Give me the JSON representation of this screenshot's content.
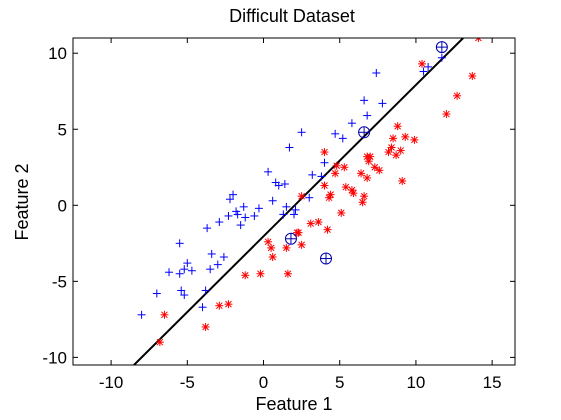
{
  "chart_data": {
    "type": "scatter",
    "title": "Difficult Dataset",
    "xlabel": "Feature 1",
    "ylabel": "Feature 2",
    "xlim": [
      -12.5,
      16.5
    ],
    "ylim": [
      -10.5,
      11
    ],
    "xticks": [
      -10,
      -5,
      0,
      5,
      10,
      15
    ],
    "yticks": [
      -10,
      -5,
      0,
      5,
      10
    ],
    "grid": false,
    "colors": {
      "class1": "#0000ff",
      "class2": "#ff0000",
      "boundary": "#000000",
      "support_vectors": "#0000aa"
    },
    "series": [
      {
        "marker": "plus",
        "color": "#0000ff",
        "points": [
          [
            -8,
            -7.2
          ],
          [
            -7,
            -5.8
          ],
          [
            -6.2,
            -4.4
          ],
          [
            -5.5,
            -2.5
          ],
          [
            -5.5,
            -4.5
          ],
          [
            -5.4,
            -5.6
          ],
          [
            -5.2,
            -5.9
          ],
          [
            -5.2,
            -4.2
          ],
          [
            -5,
            -3.8
          ],
          [
            -4.7,
            -4.3
          ],
          [
            -4,
            -6.7
          ],
          [
            -3.8,
            -5.6
          ],
          [
            -3.7,
            -1.5
          ],
          [
            -3.5,
            -4.2
          ],
          [
            -3.4,
            -3.2
          ],
          [
            -3,
            -3.9
          ],
          [
            -2.9,
            -1.1
          ],
          [
            -2.6,
            -3.4
          ],
          [
            -2.3,
            -0.7
          ],
          [
            -2.2,
            0.4
          ],
          [
            -2,
            0.7
          ],
          [
            -1.8,
            -0.4
          ],
          [
            -1.7,
            -0.6
          ],
          [
            -1.5,
            -1.3
          ],
          [
            -1.3,
            -0.1
          ],
          [
            -1.2,
            -0.8
          ],
          [
            -0.6,
            -0.7
          ],
          [
            -0.3,
            -0.2
          ],
          [
            0.3,
            2.2
          ],
          [
            0.6,
            0.3
          ],
          [
            0.8,
            1.5
          ],
          [
            1,
            1.3
          ],
          [
            1.3,
            -0.6
          ],
          [
            1.4,
            1.4
          ],
          [
            1.5,
            -0.1
          ],
          [
            1.7,
            3.8
          ],
          [
            2,
            -0.6
          ],
          [
            2.1,
            -0.3
          ],
          [
            2.5,
            4.8
          ],
          [
            3,
            0.5
          ],
          [
            3.2,
            2
          ],
          [
            3.8,
            1.9
          ],
          [
            4,
            2.8
          ],
          [
            4.7,
            4.7
          ],
          [
            5.2,
            4.4
          ],
          [
            5.8,
            5.4
          ],
          [
            6.6,
            6.9
          ],
          [
            6.8,
            5.9
          ],
          [
            7.4,
            8.7
          ],
          [
            7.8,
            6.7
          ],
          [
            10.5,
            8.8
          ],
          [
            10.8,
            9.1
          ],
          [
            11.7,
            9.7
          ]
        ]
      },
      {
        "marker": "asterisk",
        "color": "#ff0000",
        "points": [
          [
            -6.8,
            -9
          ],
          [
            -6.5,
            -7.2
          ],
          [
            -3.8,
            -8
          ],
          [
            -2.9,
            -6.6
          ],
          [
            -2.3,
            -6.5
          ],
          [
            -1.2,
            -4.6
          ],
          [
            -0.2,
            -4.5
          ],
          [
            0.3,
            -2.4
          ],
          [
            0.5,
            -2.8
          ],
          [
            0.6,
            -3.4
          ],
          [
            1.5,
            -2.8
          ],
          [
            1.6,
            -4.5
          ],
          [
            2.2,
            -1.8
          ],
          [
            2.3,
            -1.8
          ],
          [
            2.5,
            0.6
          ],
          [
            2.5,
            -2.6
          ],
          [
            3.1,
            -1.2
          ],
          [
            3.6,
            -1.1
          ],
          [
            4,
            3.5
          ],
          [
            4,
            1.3
          ],
          [
            4.2,
            -1.6
          ],
          [
            4.3,
            0.5
          ],
          [
            4.4,
            0.7
          ],
          [
            4.7,
            2.1
          ],
          [
            4.8,
            2.6
          ],
          [
            5.1,
            -0.5
          ],
          [
            5.3,
            2.5
          ],
          [
            5.4,
            1.2
          ],
          [
            5.8,
            1
          ],
          [
            5.9,
            0.8
          ],
          [
            6.4,
            2.1
          ],
          [
            6.5,
            0.2
          ],
          [
            6.6,
            0.6
          ],
          [
            6.8,
            1.8
          ],
          [
            6.8,
            3.2
          ],
          [
            6.9,
            2.9
          ],
          [
            7,
            3.2
          ],
          [
            7.3,
            2.5
          ],
          [
            7.6,
            2.3
          ],
          [
            8.2,
            3.5
          ],
          [
            8.4,
            3.8
          ],
          [
            8.5,
            4.4
          ],
          [
            8.7,
            3.3
          ],
          [
            8.8,
            5.2
          ],
          [
            9,
            3.6
          ],
          [
            9.1,
            1.6
          ],
          [
            9.3,
            4.5
          ],
          [
            9.9,
            4.3
          ],
          [
            10.4,
            9.3
          ],
          [
            12,
            6
          ],
          [
            12.7,
            7.2
          ],
          [
            13.7,
            8.5
          ],
          [
            14.1,
            11
          ]
        ]
      }
    ],
    "support_vectors": [
      [
        11.7,
        10.4
      ],
      [
        6.6,
        4.8
      ],
      [
        1.8,
        -2.2
      ],
      [
        4.1,
        -3.5
      ]
    ],
    "decision_boundary": [
      [
        -8.5,
        -10.5
      ],
      [
        13.1,
        11
      ]
    ]
  }
}
